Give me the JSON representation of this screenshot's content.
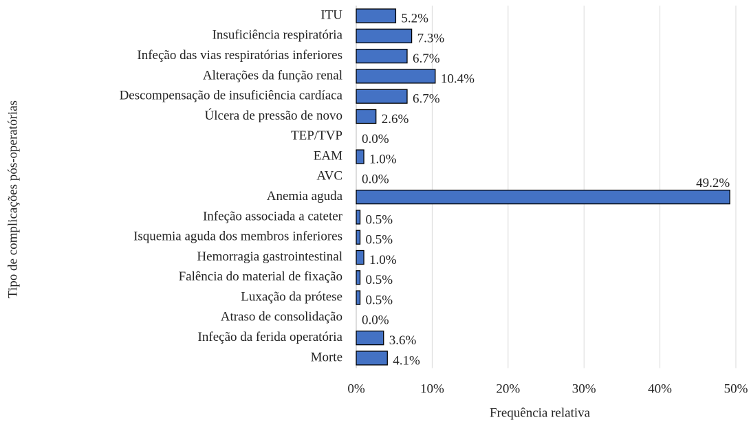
{
  "chart_data": {
    "type": "barh",
    "x_label": "Frequência relativa",
    "y_label": "Tipo de complicações pós-operatórias",
    "categories": [
      "ITU",
      "Insuficiência respiratória",
      "Infeção das vias respiratórias inferiores",
      "Alterações da função renal",
      "Descompensação de insuficiência cardíaca",
      "Úlcera de pressão de novo",
      "TEP/TVP",
      "EAM",
      "AVC",
      "Anemia aguda",
      "Infeção associada a cateter",
      "Isquemia aguda dos membros inferiores",
      "Hemorragia gastrointestinal",
      "Falência do material de fixação",
      "Luxação da prótese",
      "Atraso de consolidação",
      "Infeção da ferida operatória",
      "Morte"
    ],
    "values": [
      5.2,
      7.3,
      6.7,
      10.4,
      6.7,
      2.6,
      0.0,
      1.0,
      0.0,
      49.2,
      0.5,
      0.5,
      1.0,
      0.5,
      0.5,
      0.0,
      3.6,
      4.1
    ],
    "value_labels": [
      "5.2%",
      "7.3%",
      "6.7%",
      "10.4%",
      "6.7%",
      "2.6%",
      "0.0%",
      "1.0%",
      "0.0%",
      "49.2%",
      "0.5%",
      "0.5%",
      "1.0%",
      "0.5%",
      "0.5%",
      "0.0%",
      "3.6%",
      "4.1%"
    ],
    "color": "#4472c4",
    "xlim": [
      0,
      50
    ],
    "xticks": [
      {
        "value": 0,
        "label": "0%"
      },
      {
        "value": 10,
        "label": "10%"
      },
      {
        "value": 20,
        "label": "20%"
      },
      {
        "value": 30,
        "label": "30%"
      },
      {
        "value": 40,
        "label": "40%"
      },
      {
        "value": 50,
        "label": "50%"
      }
    ],
    "grid": true
  }
}
